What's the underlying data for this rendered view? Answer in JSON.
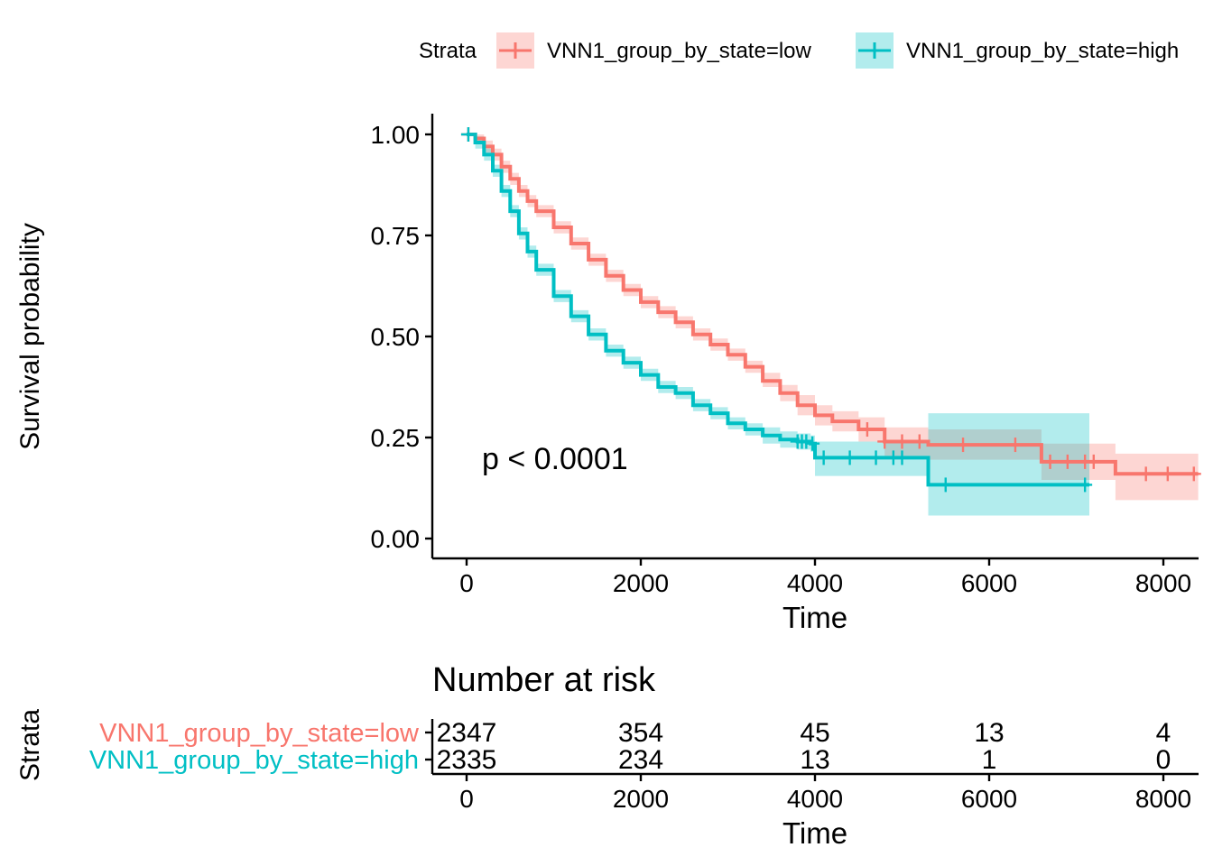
{
  "legend": {
    "title": "Strata",
    "position": "top",
    "items": [
      {
        "label": "VNN1_group_by_state=low",
        "color": "#F8766D"
      },
      {
        "label": "VNN1_group_by_state=high",
        "color": "#00BFC4"
      }
    ]
  },
  "chart_data": [
    {
      "type": "line",
      "subtype": "kaplan-meier",
      "xlabel": "Time",
      "ylabel": "Survival probability",
      "xlim": [
        -400,
        8400
      ],
      "ylim": [
        0,
        1
      ],
      "x_ticks": [
        "0",
        "2000",
        "4000",
        "6000",
        "8000"
      ],
      "y_ticks": [
        "0.00",
        "0.25",
        "0.50",
        "0.75",
        "1.00"
      ],
      "grid": false,
      "annotation": "p < 0.0001",
      "series": [
        {
          "name": "VNN1_group_by_state=low",
          "color": "#F8766D",
          "x": [
            0,
            100,
            200,
            300,
            400,
            500,
            600,
            700,
            800,
            1000,
            1200,
            1400,
            1600,
            1800,
            2000,
            2200,
            2400,
            2600,
            2800,
            3000,
            3200,
            3400,
            3600,
            3800,
            4000,
            4200,
            4500,
            4800,
            5300,
            6000,
            6450,
            6600,
            7400,
            7450,
            8400
          ],
          "y": [
            1.0,
            0.99,
            0.97,
            0.95,
            0.92,
            0.89,
            0.86,
            0.835,
            0.81,
            0.77,
            0.73,
            0.69,
            0.65,
            0.615,
            0.585,
            0.56,
            0.535,
            0.505,
            0.48,
            0.455,
            0.425,
            0.39,
            0.36,
            0.33,
            0.305,
            0.29,
            0.27,
            0.24,
            0.232,
            0.232,
            0.232,
            0.19,
            0.19,
            0.16,
            0.16
          ],
          "ci_upper": [
            1.0,
            1.0,
            0.985,
            0.965,
            0.935,
            0.905,
            0.875,
            0.85,
            0.825,
            0.785,
            0.745,
            0.705,
            0.665,
            0.63,
            0.6,
            0.575,
            0.55,
            0.52,
            0.495,
            0.47,
            0.44,
            0.41,
            0.38,
            0.355,
            0.33,
            0.315,
            0.3,
            0.275,
            0.27,
            0.27,
            0.27,
            0.235,
            0.235,
            0.21,
            0.21
          ],
          "ci_lower": [
            1.0,
            0.98,
            0.955,
            0.935,
            0.905,
            0.875,
            0.845,
            0.82,
            0.795,
            0.755,
            0.715,
            0.675,
            0.635,
            0.6,
            0.57,
            0.545,
            0.52,
            0.49,
            0.465,
            0.44,
            0.41,
            0.375,
            0.34,
            0.305,
            0.28,
            0.265,
            0.24,
            0.205,
            0.195,
            0.195,
            0.195,
            0.145,
            0.145,
            0.095,
            0.095
          ],
          "censor_x": [
            20,
            4600,
            4800,
            5000,
            5200,
            5700,
            6300,
            6700,
            6900,
            7100,
            7200,
            7800,
            8050,
            8350
          ]
        },
        {
          "name": "VNN1_group_by_state=high",
          "color": "#00BFC4",
          "x": [
            0,
            100,
            200,
            300,
            400,
            500,
            600,
            700,
            800,
            1000,
            1200,
            1400,
            1600,
            1800,
            2000,
            2200,
            2400,
            2600,
            2800,
            3000,
            3200,
            3400,
            3600,
            3800,
            3950,
            4000,
            5300,
            7150
          ],
          "y": [
            1.0,
            0.98,
            0.95,
            0.91,
            0.86,
            0.81,
            0.755,
            0.71,
            0.665,
            0.6,
            0.55,
            0.505,
            0.465,
            0.435,
            0.405,
            0.375,
            0.36,
            0.33,
            0.31,
            0.285,
            0.27,
            0.255,
            0.245,
            0.24,
            0.235,
            0.2,
            0.133,
            0.133
          ],
          "ci_upper": [
            1.0,
            0.995,
            0.965,
            0.925,
            0.875,
            0.825,
            0.77,
            0.725,
            0.68,
            0.615,
            0.565,
            0.52,
            0.48,
            0.45,
            0.42,
            0.39,
            0.375,
            0.345,
            0.325,
            0.3,
            0.285,
            0.275,
            0.265,
            0.26,
            0.255,
            0.24,
            0.31,
            0.31
          ],
          "ci_lower": [
            1.0,
            0.965,
            0.935,
            0.895,
            0.845,
            0.795,
            0.74,
            0.695,
            0.65,
            0.585,
            0.535,
            0.49,
            0.45,
            0.42,
            0.39,
            0.36,
            0.345,
            0.315,
            0.295,
            0.27,
            0.255,
            0.235,
            0.225,
            0.22,
            0.215,
            0.155,
            0.057,
            0.057
          ],
          "censor_x": [
            20,
            3800,
            3850,
            3900,
            3970,
            4100,
            4400,
            4700,
            4900,
            5000,
            5500,
            7100
          ]
        }
      ]
    },
    {
      "type": "table",
      "title": "Number at risk",
      "ylabel": "Strata",
      "xlabel": "Time",
      "x_ticks": [
        "0",
        "2000",
        "4000",
        "6000",
        "8000"
      ],
      "x": [
        0,
        2000,
        4000,
        6000,
        8000
      ],
      "rows": [
        {
          "name": "VNN1_group_by_state=low",
          "color": "#F8766D",
          "values": [
            "2347",
            "354",
            "45",
            "13",
            "4"
          ]
        },
        {
          "name": "VNN1_group_by_state=high",
          "color": "#00BFC4",
          "values": [
            "2335",
            "234",
            "13",
            "1",
            "0"
          ]
        }
      ]
    }
  ]
}
